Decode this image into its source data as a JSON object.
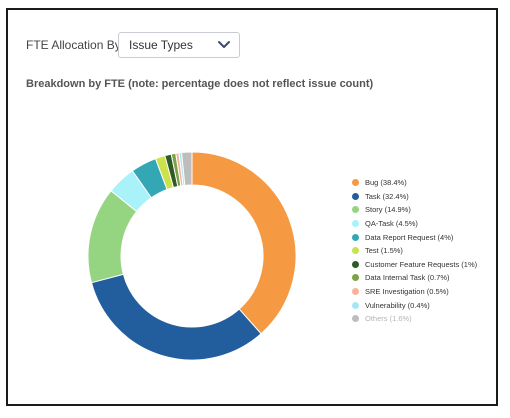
{
  "controls": {
    "allocation_label": "FTE Allocation By",
    "dropdown_value": "Issue Types"
  },
  "section_title": "Breakdown by FTE (note: percentage does not reflect issue count)",
  "chart_data": {
    "type": "pie",
    "variant": "donut",
    "title": "",
    "legend_position": "right",
    "series": [
      {
        "name": "Bug",
        "value": 38.4,
        "color": "#F59A42",
        "label": "Bug (38.4%)"
      },
      {
        "name": "Task",
        "value": 32.4,
        "color": "#225E9E",
        "label": "Task (32.4%)"
      },
      {
        "name": "Story",
        "value": 14.9,
        "color": "#95D480",
        "label": "Story (14.9%)"
      },
      {
        "name": "QA-Task",
        "value": 4.5,
        "color": "#A9F2FA",
        "label": "QA-Task (4.5%)"
      },
      {
        "name": "Data Report Request",
        "value": 4,
        "color": "#33A8B4",
        "label": "Data Report Request (4%)"
      },
      {
        "name": "Test",
        "value": 1.5,
        "color": "#CBE24A",
        "label": "Test (1.5%)"
      },
      {
        "name": "Customer Feature Requests",
        "value": 1,
        "color": "#2E5A25",
        "label": "Customer Feature Requests (1%)"
      },
      {
        "name": "Data Internal Task",
        "value": 0.7,
        "color": "#7AA348",
        "label": "Data Internal Task (0.7%)"
      },
      {
        "name": "SRE Investigation",
        "value": 0.5,
        "color": "#F7B49A",
        "label": "SRE Investigation (0.5%)"
      },
      {
        "name": "Vulnerability",
        "value": 0.4,
        "color": "#A6E6F4",
        "label": "Vulnerability (0.4%)"
      },
      {
        "name": "Others",
        "value": 1.6,
        "color": "#BDBDBD",
        "label": "Others (1.6%)",
        "muted": true
      }
    ]
  }
}
